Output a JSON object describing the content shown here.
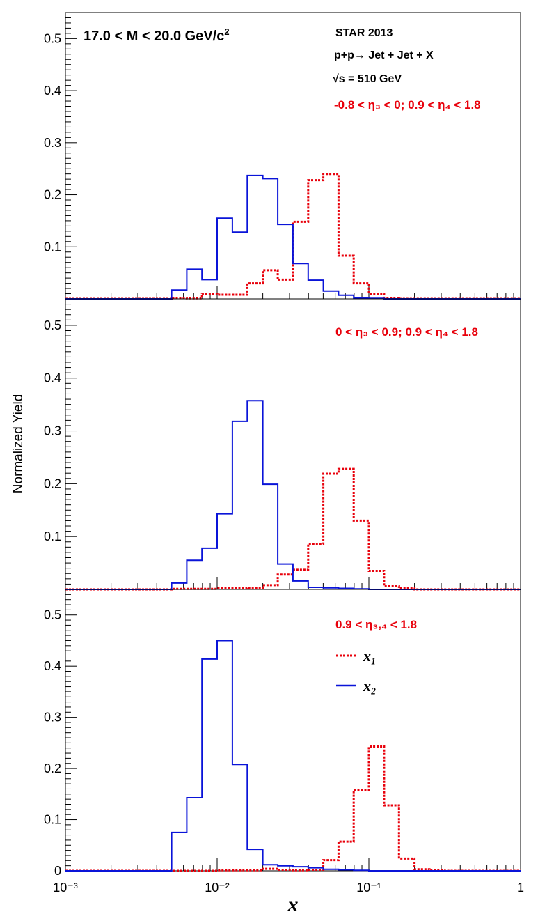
{
  "figure": {
    "ylabel": "Normalized Yield",
    "xlabel": "x",
    "mass_label": "17.0 < M < 20.0 GeV/c",
    "mass_label_sup": "2",
    "experiment": "STAR 2013",
    "process": "p+p→ Jet + Jet + X",
    "energy": "√s = 510 GeV",
    "colors": {
      "x1": "#e8000b",
      "x2": "#0a14d8",
      "axis": "#000000"
    }
  },
  "chart_data": [
    {
      "type": "histogram",
      "panel": "top",
      "region_label": "-0.8 < η₃ < 0; 0.9 < η₄ < 1.8",
      "xscale": "log",
      "xlim": [
        0.001,
        1
      ],
      "ylim": [
        0,
        0.55
      ],
      "yticks": [
        "0.1",
        "0.2",
        "0.3",
        "0.4",
        "0.5"
      ],
      "bin_edges": [
        0.001,
        0.00126,
        0.00158,
        0.002,
        0.00251,
        0.00316,
        0.00398,
        0.00501,
        0.00631,
        0.00794,
        0.01,
        0.0126,
        0.0158,
        0.02,
        0.0251,
        0.0316,
        0.0398,
        0.0501,
        0.0631,
        0.0794,
        0.1,
        0.126,
        0.158,
        0.2,
        0.251,
        0.316,
        0.398,
        0.501,
        0.631,
        0.794,
        1.0
      ],
      "series": [
        {
          "key": "x1",
          "style": "dotted",
          "values": [
            0,
            0,
            0,
            0,
            0,
            0,
            0,
            0.002,
            0.001,
            0.01,
            0.008,
            0.008,
            0.03,
            0.055,
            0.037,
            0.148,
            0.228,
            0.24,
            0.083,
            0.03,
            0.01,
            0.002,
            0,
            0,
            0,
            0,
            0,
            0,
            0,
            0
          ]
        },
        {
          "key": "x2",
          "style": "solid",
          "values": [
            0,
            0,
            0,
            0,
            0,
            0,
            0,
            0.017,
            0.057,
            0.037,
            0.155,
            0.128,
            0.237,
            0.231,
            0.143,
            0.068,
            0.036,
            0.015,
            0.007,
            0.002,
            0.001,
            0,
            0,
            0,
            0,
            0,
            0,
            0,
            0,
            0
          ]
        }
      ]
    },
    {
      "type": "histogram",
      "panel": "middle",
      "region_label": "0 < η₃ < 0.9; 0.9 < η₄ < 1.8",
      "xscale": "log",
      "xlim": [
        0.001,
        1
      ],
      "ylim": [
        0,
        0.55
      ],
      "yticks": [
        "0.1",
        "0.2",
        "0.3",
        "0.4",
        "0.5"
      ],
      "bin_edges": [
        0.001,
        0.00126,
        0.00158,
        0.002,
        0.00251,
        0.00316,
        0.00398,
        0.00501,
        0.00631,
        0.00794,
        0.01,
        0.0126,
        0.0158,
        0.02,
        0.0251,
        0.0316,
        0.0398,
        0.0501,
        0.0631,
        0.0794,
        0.1,
        0.126,
        0.158,
        0.2,
        0.251,
        0.316,
        0.398,
        0.501,
        0.631,
        0.794,
        1.0
      ],
      "series": [
        {
          "key": "x1",
          "style": "dotted",
          "values": [
            0,
            0,
            0,
            0,
            0,
            0,
            0,
            0.001,
            0.001,
            0.001,
            0.002,
            0.002,
            0.003,
            0.008,
            0.028,
            0.037,
            0.086,
            0.219,
            0.228,
            0.13,
            0.035,
            0.006,
            0.002,
            0,
            0,
            0,
            0,
            0,
            0,
            0
          ]
        },
        {
          "key": "x2",
          "style": "solid",
          "values": [
            0,
            0,
            0,
            0,
            0,
            0,
            0,
            0.012,
            0.055,
            0.078,
            0.143,
            0.318,
            0.357,
            0.199,
            0.048,
            0.016,
            0.004,
            0.003,
            0.002,
            0.001,
            0,
            0,
            0,
            0,
            0,
            0,
            0,
            0,
            0,
            0
          ]
        }
      ]
    },
    {
      "type": "histogram",
      "panel": "bottom",
      "region_label": "0.9 < η₃,₄ < 1.8",
      "xscale": "log",
      "xlim": [
        0.001,
        1
      ],
      "ylim": [
        0,
        0.55
      ],
      "yticks": [
        "0",
        "0.1",
        "0.2",
        "0.3",
        "0.4",
        "0.5"
      ],
      "xticks": [
        "10⁻³",
        "10⁻²",
        "10⁻¹",
        "1"
      ],
      "legend": {
        "x1": "x₁",
        "x2": "x₂"
      },
      "bin_edges": [
        0.001,
        0.00126,
        0.00158,
        0.002,
        0.00251,
        0.00316,
        0.00398,
        0.00501,
        0.00631,
        0.00794,
        0.01,
        0.0126,
        0.0158,
        0.02,
        0.0251,
        0.0316,
        0.0398,
        0.0501,
        0.0631,
        0.0794,
        0.1,
        0.126,
        0.158,
        0.2,
        0.251,
        0.316,
        0.398,
        0.501,
        0.631,
        0.794,
        1.0
      ],
      "series": [
        {
          "key": "x1",
          "style": "dotted",
          "values": [
            0,
            0,
            0,
            0,
            0,
            0,
            0,
            0,
            0,
            0,
            0.001,
            0.001,
            0.001,
            0.004,
            0.002,
            0.001,
            0.002,
            0.021,
            0.057,
            0.158,
            0.243,
            0.128,
            0.024,
            0.003,
            0.001,
            0,
            0,
            0,
            0,
            0
          ]
        },
        {
          "key": "x2",
          "style": "solid",
          "values": [
            0,
            0,
            0,
            0,
            0,
            0,
            0,
            0.075,
            0.143,
            0.414,
            0.45,
            0.208,
            0.042,
            0.012,
            0.01,
            0.008,
            0.006,
            0.003,
            0.002,
            0.001,
            0,
            0,
            0,
            0,
            0,
            0,
            0,
            0,
            0,
            0
          ]
        }
      ]
    }
  ]
}
